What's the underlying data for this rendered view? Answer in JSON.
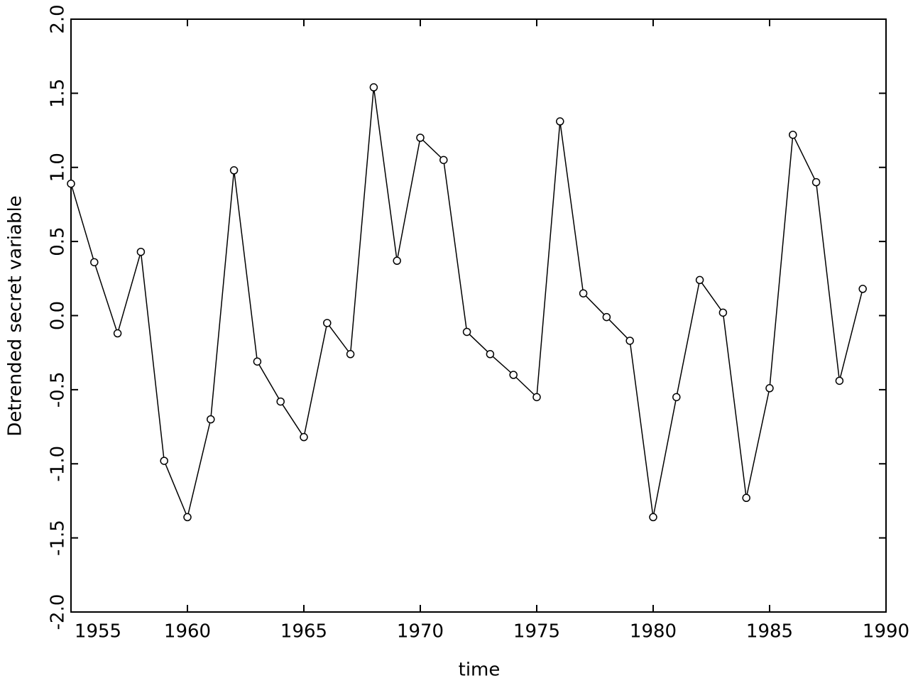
{
  "chart_data": {
    "type": "line",
    "x_label": "time",
    "y_label": "Detrended secret variable",
    "x": [
      1955,
      1956,
      1957,
      1958,
      1959,
      1960,
      1961,
      1962,
      1963,
      1964,
      1965,
      1966,
      1967,
      1968,
      1969,
      1970,
      1971,
      1972,
      1973,
      1974,
      1975,
      1976,
      1977,
      1978,
      1979,
      1980,
      1981,
      1982,
      1983,
      1984,
      1985,
      1986,
      1987,
      1988,
      1989
    ],
    "series": [
      {
        "name": "Detrended secret variable",
        "color": "#000000",
        "values": [
          0.89,
          0.36,
          -0.12,
          0.43,
          -0.98,
          -1.36,
          -0.7,
          0.98,
          -0.31,
          -0.58,
          -0.82,
          -0.05,
          -0.26,
          1.54,
          0.37,
          1.2,
          1.05,
          -0.11,
          -0.26,
          -0.4,
          -0.55,
          1.31,
          0.15,
          -0.01,
          -0.17,
          -1.36,
          -0.55,
          0.24,
          0.02,
          -1.23,
          -0.49,
          1.22,
          0.9,
          -0.44,
          0.18
        ]
      }
    ],
    "xlim": [
      1955,
      1990
    ],
    "xticks": [
      1955,
      1960,
      1965,
      1970,
      1975,
      1980,
      1985,
      1990
    ],
    "ylim": [
      -2,
      2
    ],
    "yticks": [
      {
        "value": -2,
        "label": "-2.0"
      },
      {
        "value": -1.5,
        "label": "-1.5"
      },
      {
        "value": -1,
        "label": "-1.0"
      },
      {
        "value": -0.5,
        "label": "-0.5"
      },
      {
        "value": 0,
        "label": "0.0"
      },
      {
        "value": 0.5,
        "label": "0.5"
      },
      {
        "value": 1,
        "label": "1.0"
      },
      {
        "value": 1.5,
        "label": "1.5"
      },
      {
        "value": 2,
        "label": "2.0"
      }
    ],
    "grid": false
  }
}
